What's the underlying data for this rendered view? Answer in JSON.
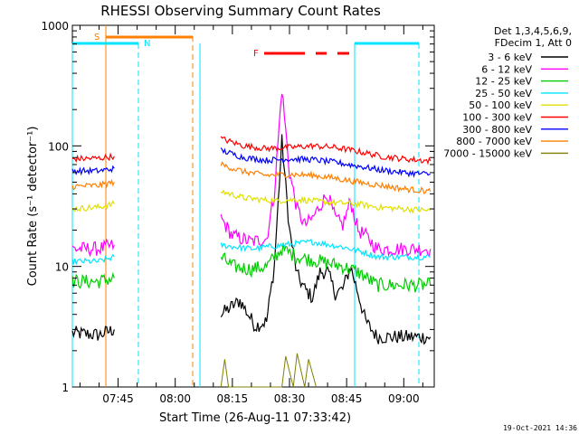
{
  "chart_data": {
    "type": "line",
    "title": "RHESSI Observing Summary Count Rates",
    "xlabel": "Start Time (26-Aug-11 07:33:42)",
    "ylabel": "Count Rate (s⁻¹ detector⁻¹)",
    "y_scale": "log",
    "ylim": [
      1,
      1000
    ],
    "xlim": [
      "07:33",
      "09:08"
    ],
    "x_ticks": [
      "07:45",
      "08:00",
      "08:15",
      "08:30",
      "08:45",
      "09:00"
    ],
    "y_ticks": [
      "1",
      "10",
      "100",
      "1000"
    ],
    "grid": false,
    "legend_position": "right",
    "legend_header": [
      "Det 1,3,4,5,6,9,",
      "FDecim 1, Att 0"
    ],
    "timestamp": "19-Oct-2021 14:36",
    "flag_labels": [
      "S",
      "N",
      "F"
    ],
    "series": [
      {
        "name": "3 - 6 keV",
        "color": "#000000",
        "points": [
          [
            "07:33",
            2.8
          ],
          [
            "07:40",
            2.7
          ],
          [
            "07:44",
            3.0
          ],
          [
            "08:12",
            4.0
          ],
          [
            "08:17",
            5.2
          ],
          [
            "08:21",
            3.2
          ],
          [
            "08:24",
            3.5
          ],
          [
            "08:26",
            10
          ],
          [
            "08:28",
            110
          ],
          [
            "08:30",
            20
          ],
          [
            "08:32",
            8.5
          ],
          [
            "08:34",
            6.5
          ],
          [
            "08:36",
            5.5
          ],
          [
            "08:38",
            9
          ],
          [
            "08:40",
            9
          ],
          [
            "08:42",
            6
          ],
          [
            "08:44",
            6.5
          ],
          [
            "08:46",
            10
          ],
          [
            "08:48",
            6
          ],
          [
            "08:50",
            3.5
          ],
          [
            "08:53",
            2.6
          ],
          [
            "09:00",
            2.6
          ],
          [
            "09:07",
            2.6
          ]
        ]
      },
      {
        "name": "6 - 12 keV",
        "color": "#ff00ff",
        "points": [
          [
            "07:33",
            14
          ],
          [
            "07:40",
            14
          ],
          [
            "07:44",
            15
          ],
          [
            "08:12",
            25
          ],
          [
            "08:15",
            18
          ],
          [
            "08:20",
            16
          ],
          [
            "08:24",
            17
          ],
          [
            "08:26",
            40
          ],
          [
            "08:28",
            300
          ],
          [
            "08:30",
            60
          ],
          [
            "08:32",
            30
          ],
          [
            "08:34",
            22
          ],
          [
            "08:36",
            25
          ],
          [
            "08:38",
            32
          ],
          [
            "08:40",
            40
          ],
          [
            "08:42",
            25
          ],
          [
            "08:44",
            22
          ],
          [
            "08:46",
            35
          ],
          [
            "08:48",
            20
          ],
          [
            "08:50",
            18
          ],
          [
            "08:53",
            14
          ],
          [
            "09:00",
            14
          ],
          [
            "09:07",
            14
          ]
        ]
      },
      {
        "name": "12 - 25 keV",
        "color": "#00cc00",
        "points": [
          [
            "07:33",
            7.5
          ],
          [
            "07:40",
            7.5
          ],
          [
            "07:44",
            8
          ],
          [
            "08:12",
            12
          ],
          [
            "08:15",
            10
          ],
          [
            "08:20",
            9.5
          ],
          [
            "08:24",
            10
          ],
          [
            "08:28",
            14
          ],
          [
            "08:32",
            12
          ],
          [
            "08:38",
            11
          ],
          [
            "08:44",
            10
          ],
          [
            "08:48",
            9
          ],
          [
            "08:53",
            7
          ],
          [
            "09:00",
            7
          ],
          [
            "09:07",
            7
          ]
        ]
      },
      {
        "name": "25 - 50 keV",
        "color": "#00e5ff",
        "points": [
          [
            "07:33",
            11
          ],
          [
            "07:40",
            11
          ],
          [
            "07:44",
            12
          ],
          [
            "08:12",
            15
          ],
          [
            "08:20",
            14
          ],
          [
            "08:28",
            15
          ],
          [
            "08:36",
            16
          ],
          [
            "08:44",
            14.5
          ],
          [
            "08:50",
            13
          ],
          [
            "08:53",
            12
          ],
          [
            "09:00",
            12
          ],
          [
            "09:07",
            12
          ]
        ]
      },
      {
        "name": "50 - 100 keV",
        "color": "#e0e000",
        "points": [
          [
            "07:33",
            30
          ],
          [
            "07:40",
            31
          ],
          [
            "07:44",
            33
          ],
          [
            "08:12",
            42
          ],
          [
            "08:18",
            37
          ],
          [
            "08:26",
            35
          ],
          [
            "08:32",
            36
          ],
          [
            "08:40",
            34
          ],
          [
            "08:48",
            33
          ],
          [
            "08:53",
            31
          ],
          [
            "09:00",
            30
          ],
          [
            "09:07",
            29
          ]
        ]
      },
      {
        "name": "100 - 300 keV",
        "color": "#ff0000",
        "points": [
          [
            "07:33",
            78
          ],
          [
            "07:40",
            79
          ],
          [
            "07:44",
            82
          ],
          [
            "08:12",
            115
          ],
          [
            "08:18",
            100
          ],
          [
            "08:24",
            95
          ],
          [
            "08:30",
            97
          ],
          [
            "08:36",
            100
          ],
          [
            "08:42",
            97
          ],
          [
            "08:48",
            90
          ],
          [
            "08:54",
            82
          ],
          [
            "09:00",
            78
          ],
          [
            "09:07",
            75
          ]
        ]
      },
      {
        "name": "300 - 800 keV",
        "color": "#0000ff",
        "points": [
          [
            "07:33",
            62
          ],
          [
            "07:40",
            62
          ],
          [
            "07:44",
            65
          ],
          [
            "08:12",
            92
          ],
          [
            "08:18",
            80
          ],
          [
            "08:24",
            76
          ],
          [
            "08:30",
            78
          ],
          [
            "08:36",
            77
          ],
          [
            "08:42",
            73
          ],
          [
            "08:48",
            68
          ],
          [
            "08:54",
            63
          ],
          [
            "09:00",
            60
          ],
          [
            "09:07",
            58
          ]
        ]
      },
      {
        "name": "800 - 7000 keV",
        "color": "#ff7f00",
        "points": [
          [
            "07:33",
            46
          ],
          [
            "07:40",
            47
          ],
          [
            "07:44",
            50
          ],
          [
            "08:12",
            70
          ],
          [
            "08:18",
            61
          ],
          [
            "08:24",
            57
          ],
          [
            "08:30",
            58
          ],
          [
            "08:36",
            57
          ],
          [
            "08:42",
            54
          ],
          [
            "08:48",
            50
          ],
          [
            "08:54",
            47
          ],
          [
            "09:00",
            44
          ],
          [
            "09:07",
            42
          ]
        ]
      },
      {
        "name": "7000 - 15000 keV",
        "color": "#808000",
        "points": [
          [
            "08:12",
            1.0
          ],
          [
            "08:13",
            1.7
          ],
          [
            "08:14",
            1.0
          ],
          [
            "08:28",
            1.0
          ],
          [
            "08:29",
            1.8
          ],
          [
            "08:31",
            1.0
          ],
          [
            "08:32",
            1.9
          ],
          [
            "08:34",
            1.0
          ],
          [
            "08:35",
            1.7
          ],
          [
            "08:37",
            1.0
          ]
        ]
      }
    ]
  }
}
